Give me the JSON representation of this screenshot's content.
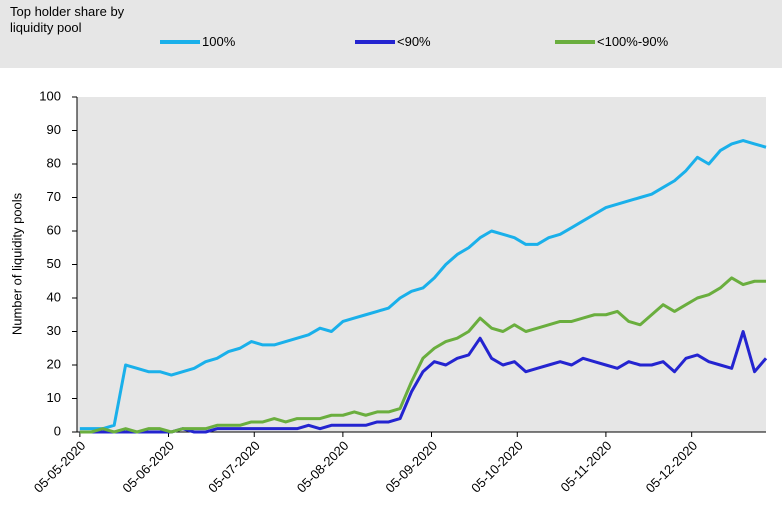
{
  "chart_data": {
    "type": "line",
    "legend_title": "Top holder share by liquidity pool",
    "ylabel": "Number of liquidity pools",
    "x": [
      "2020-05-05",
      "2020-05-09",
      "2020-05-13",
      "2020-05-17",
      "2020-05-21",
      "2020-05-25",
      "2020-05-29",
      "2020-06-02",
      "2020-06-06",
      "2020-06-10",
      "2020-06-14",
      "2020-06-18",
      "2020-06-22",
      "2020-06-26",
      "2020-06-30",
      "2020-07-04",
      "2020-07-08",
      "2020-07-12",
      "2020-07-16",
      "2020-07-20",
      "2020-07-24",
      "2020-07-28",
      "2020-08-01",
      "2020-08-05",
      "2020-08-09",
      "2020-08-13",
      "2020-08-17",
      "2020-08-21",
      "2020-08-25",
      "2020-08-29",
      "2020-09-02",
      "2020-09-06",
      "2020-09-10",
      "2020-09-14",
      "2020-09-18",
      "2020-09-22",
      "2020-09-26",
      "2020-09-30",
      "2020-10-04",
      "2020-10-08",
      "2020-10-12",
      "2020-10-16",
      "2020-10-20",
      "2020-10-24",
      "2020-10-28",
      "2020-11-01",
      "2020-11-05",
      "2020-11-09",
      "2020-11-13",
      "2020-11-17",
      "2020-11-21",
      "2020-11-25",
      "2020-11-29",
      "2020-12-03",
      "2020-12-07",
      "2020-12-11",
      "2020-12-15",
      "2020-12-19",
      "2020-12-23",
      "2020-12-27",
      "2020-12-31"
    ],
    "series": [
      {
        "name": "100%",
        "color": "#1ab0ea",
        "values": [
          1,
          1,
          1,
          2,
          20,
          19,
          18,
          18,
          17,
          18,
          19,
          21,
          22,
          24,
          25,
          27,
          26,
          26,
          27,
          28,
          29,
          31,
          30,
          33,
          34,
          35,
          36,
          37,
          40,
          42,
          43,
          46,
          50,
          53,
          55,
          58,
          60,
          59,
          58,
          56,
          56,
          58,
          59,
          61,
          63,
          65,
          67,
          68,
          69,
          70,
          71,
          73,
          75,
          78,
          82,
          80,
          84,
          86,
          87,
          86,
          85
        ]
      },
      {
        "name": "<90%",
        "color": "#2424d0",
        "values": [
          0,
          0,
          0,
          0,
          0,
          0,
          0,
          0,
          0,
          1,
          0,
          0,
          1,
          1,
          1,
          1,
          1,
          1,
          1,
          1,
          2,
          1,
          2,
          2,
          2,
          2,
          3,
          3,
          4,
          12,
          18,
          21,
          20,
          22,
          23,
          28,
          22,
          20,
          21,
          18,
          19,
          20,
          21,
          20,
          22,
          21,
          20,
          19,
          21,
          20,
          20,
          21,
          18,
          22,
          23,
          21,
          20,
          19,
          30,
          18,
          22
        ]
      },
      {
        "name": "<100%-90%",
        "color": "#6aae3e",
        "values": [
          0,
          0,
          1,
          0,
          1,
          0,
          1,
          1,
          0,
          1,
          1,
          1,
          2,
          2,
          2,
          3,
          3,
          4,
          3,
          4,
          4,
          4,
          5,
          5,
          6,
          5,
          6,
          6,
          7,
          15,
          22,
          25,
          27,
          28,
          30,
          34,
          31,
          30,
          32,
          30,
          31,
          32,
          33,
          33,
          34,
          35,
          35,
          36,
          33,
          32,
          35,
          38,
          36,
          38,
          40,
          41,
          43,
          46,
          44,
          45,
          45
        ]
      }
    ],
    "xlim": [
      "2020-05-04",
      "2020-12-31"
    ],
    "xticks": [
      {
        "value": "2020-05-05",
        "label": "05-05-2020"
      },
      {
        "value": "2020-06-05",
        "label": "05-06-2020"
      },
      {
        "value": "2020-07-05",
        "label": "05-07-2020"
      },
      {
        "value": "2020-08-05",
        "label": "05-08-2020"
      },
      {
        "value": "2020-09-05",
        "label": "05-09-2020"
      },
      {
        "value": "2020-10-05",
        "label": "05-10-2020"
      },
      {
        "value": "2020-11-05",
        "label": "05-11-2020"
      },
      {
        "value": "2020-12-05",
        "label": "05-12-2020"
      }
    ],
    "ylim": [
      0,
      100
    ],
    "yticks": [
      0,
      10,
      20,
      30,
      40,
      50,
      60,
      70,
      80,
      90,
      100
    ],
    "grid": false
  }
}
